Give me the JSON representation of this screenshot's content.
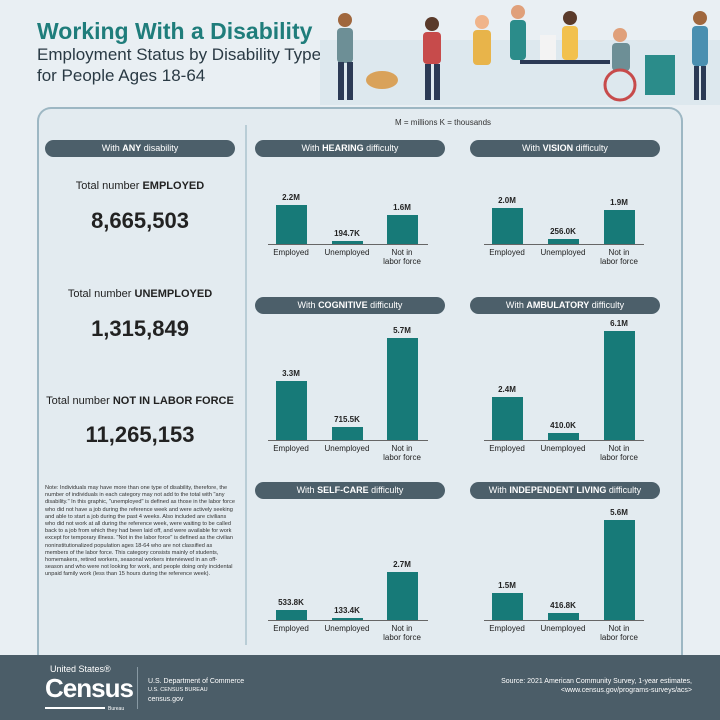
{
  "header": {
    "title": "Working With a Disability",
    "subtitle": "Employment Status by Disability Type for People Ages 18-64"
  },
  "legend": "M = millions   K = thousands",
  "any": {
    "pill_pre": "With ",
    "pill_bold": "ANY",
    "pill_post": " disability",
    "employed_pre": "Total number ",
    "employed_bold": "EMPLOYED",
    "employed": "8,665,503",
    "unemployed_pre": "Total number ",
    "unemployed_bold": "UNEMPLOYED",
    "unemployed": "1,315,849",
    "nilf_pre": "Total number ",
    "nilf_bold": "NOT IN LABOR FORCE",
    "nilf": "11,265,153"
  },
  "note": "Note: Individuals may have more than one type of disability, therefore, the number of individuals in each category may not add to the total with \"any disability.\" In this graphic, \"unemployed\" is defined as those in the labor force who did not have a job during the reference week and were actively seeking and able to start a job during the past 4 weeks. Also included are civilians who did not work at all during the reference week, were waiting to be called back to a job from which they had been laid off, and were available for work except for temporary illness. \"Not in the labor force\" is defined as the civilian noninstitutionalized population ages 18-64 who are not classified as members of the labor force. This category consists mainly of students, homemakers, retired workers, seasonal workers interviewed in an off-season and who were not looking for work, and people doing only incidental unpaid family work (less than 15 hours during the reference week).",
  "colors": {
    "bar": "#177a78",
    "title": "#1f7d7b",
    "pill": "#4c5f6a",
    "footer": "#4b5d68"
  },
  "chart_data": [
    {
      "type": "bar",
      "title_pre": "With ",
      "title_bold": "HEARING",
      "title_post": " difficulty",
      "categories": [
        "Employed",
        "Unemployed",
        "Not in labor force"
      ],
      "values": [
        2200000,
        194700,
        1600000
      ],
      "labels": [
        "2.2M",
        "194.7K",
        "1.6M"
      ]
    },
    {
      "type": "bar",
      "title_pre": "With ",
      "title_bold": "VISION",
      "title_post": " difficulty",
      "categories": [
        "Employed",
        "Unemployed",
        "Not in labor force"
      ],
      "values": [
        2000000,
        256000,
        1900000
      ],
      "labels": [
        "2.0M",
        "256.0K",
        "1.9M"
      ]
    },
    {
      "type": "bar",
      "title_pre": "With ",
      "title_bold": "COGNITIVE",
      "title_post": " difficulty",
      "categories": [
        "Employed",
        "Unemployed",
        "Not in labor force"
      ],
      "values": [
        3300000,
        715500,
        5700000
      ],
      "labels": [
        "3.3M",
        "715.5K",
        "5.7M"
      ]
    },
    {
      "type": "bar",
      "title_pre": "With ",
      "title_bold": "AMBULATORY",
      "title_post": " difficulty",
      "categories": [
        "Employed",
        "Unemployed",
        "Not in labor force"
      ],
      "values": [
        2400000,
        410000,
        6100000
      ],
      "labels": [
        "2.4M",
        "410.0K",
        "6.1M"
      ]
    },
    {
      "type": "bar",
      "title_pre": "With ",
      "title_bold": "SELF-CARE",
      "title_post": " difficulty",
      "categories": [
        "Employed",
        "Unemployed",
        "Not in labor force"
      ],
      "values": [
        533800,
        133400,
        2700000
      ],
      "labels": [
        "533.8K",
        "133.4K",
        "2.7M"
      ]
    },
    {
      "type": "bar",
      "title_pre": "With ",
      "title_bold": "INDEPENDENT LIVING",
      "title_post": " difficulty",
      "categories": [
        "Employed",
        "Unemployed",
        "Not in labor force"
      ],
      "values": [
        1500000,
        416800,
        5600000
      ],
      "labels": [
        "1.5M",
        "416.8K",
        "5.6M"
      ]
    }
  ],
  "footer": {
    "logo_top": "United States®",
    "logo_main": "Census",
    "logo_bottom": "Bureau",
    "dept": "U.S. Department of Commerce",
    "bureau": "U.S. CENSUS BUREAU",
    "site": "census.gov",
    "source": "Source: 2021 American Community Survey, 1-year estimates,",
    "source_url": "<www.census.gov/programs-surveys/acs>"
  }
}
